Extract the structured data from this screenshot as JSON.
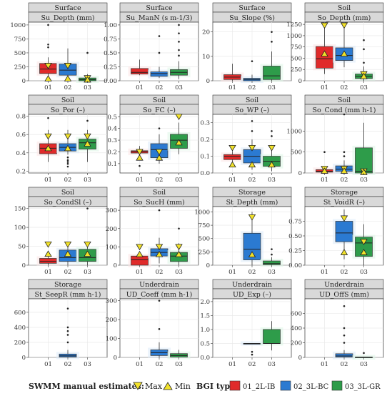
{
  "chart_data": {
    "type": "boxplot",
    "x_categories": [
      "01",
      "02",
      "03"
    ],
    "colors": {
      "series": [
        "#e02a2a",
        "#2b7ad1",
        "#2e9c4a"
      ],
      "marker_fill": "#f2e22a",
      "strip_bg": "#d9d9d9",
      "panel_border": "#333333",
      "grid": "#e6e6e6"
    },
    "legend": {
      "manual_label": "SWMM manual estimates:",
      "max_label": "Max",
      "min_label": "Min",
      "bgi_label": "BGI type:",
      "series_names": [
        "01_2L-IB",
        "02_3L-BC",
        "03_3L-GR"
      ]
    },
    "panels": [
      {
        "group": "Surface",
        "title": "Su_Depth (mm)",
        "ylim": [
          0,
          1050
        ],
        "yticks": [
          "0",
          "250",
          "500",
          "750",
          "1000"
        ],
        "boxes": [
          {
            "x": 0,
            "q1": 130,
            "med": 210,
            "q3": 310,
            "wlo": 60,
            "whi": 420,
            "out": [
              600,
              650,
              1000
            ]
          },
          {
            "x": 1,
            "q1": 100,
            "med": 190,
            "q3": 300,
            "wlo": 40,
            "whi": 580,
            "out": []
          },
          {
            "x": 2,
            "q1": 0,
            "med": 20,
            "q3": 50,
            "wlo": 0,
            "whi": 120,
            "out": [
              500
            ]
          }
        ],
        "max": [
          {
            "x": 0,
            "y": 270
          },
          {
            "x": 1,
            "y": 270
          },
          {
            "x": 2,
            "y": 50
          }
        ],
        "min": [
          {
            "x": 0,
            "y": 40
          },
          {
            "x": 1,
            "y": 40
          },
          {
            "x": 2,
            "y": 20
          }
        ]
      },
      {
        "group": "Surface",
        "title": "Su_ManN (s m-1/3)",
        "ylim": [
          0,
          1.05
        ],
        "yticks": [
          "0.00",
          "0.25",
          "0.50",
          "0.75",
          "1.00"
        ],
        "boxes": [
          {
            "x": 0,
            "q1": 0.12,
            "med": 0.15,
            "q3": 0.22,
            "wlo": 0.1,
            "whi": 0.38,
            "out": []
          },
          {
            "x": 1,
            "q1": 0.08,
            "med": 0.13,
            "q3": 0.16,
            "wlo": 0.05,
            "whi": 0.25,
            "out": [
              0.5,
              0.8
            ]
          },
          {
            "x": 2,
            "q1": 0.1,
            "med": 0.15,
            "q3": 0.2,
            "wlo": 0.03,
            "whi": 0.35,
            "out": [
              0.45,
              0.55,
              0.7,
              0.85,
              1.0
            ]
          }
        ],
        "max": [],
        "min": []
      },
      {
        "group": "Surface",
        "title": "Su_Slope (%)",
        "ylim": [
          0,
          24
        ],
        "yticks": [
          "0",
          "10",
          "20"
        ],
        "boxes": [
          {
            "x": 0,
            "q1": 0.5,
            "med": 1.5,
            "q3": 2.5,
            "wlo": 0,
            "whi": 7,
            "out": []
          },
          {
            "x": 1,
            "q1": 0,
            "med": 0.5,
            "q3": 1,
            "wlo": 0,
            "whi": 2.5,
            "out": [
              8
            ]
          },
          {
            "x": 2,
            "q1": 0.5,
            "med": 2,
            "q3": 6,
            "wlo": 0,
            "whi": 12,
            "out": [
              16,
              20
            ]
          }
        ],
        "max": [],
        "min": []
      },
      {
        "group": "Soil",
        "title": "So_Depth (mm)",
        "ylim": [
          0,
          1300
        ],
        "yticks": [
          "0",
          "250",
          "500",
          "750",
          "1000",
          "1250"
        ],
        "boxes": [
          {
            "x": 0,
            "q1": 280,
            "med": 490,
            "q3": 760,
            "wlo": 150,
            "whi": 1200,
            "out": []
          },
          {
            "x": 1,
            "q1": 450,
            "med": 560,
            "q3": 730,
            "wlo": 300,
            "whi": 1230,
            "out": []
          },
          {
            "x": 2,
            "q1": 50,
            "med": 100,
            "q3": 150,
            "wlo": 0,
            "whi": 320,
            "out": [
              400,
              700,
              900
            ]
          }
        ],
        "max": [
          {
            "x": 0,
            "y": 1230
          },
          {
            "x": 1,
            "y": 1230
          },
          {
            "x": 2,
            "y": 150
          }
        ],
        "min": [
          {
            "x": 0,
            "y": 600
          },
          {
            "x": 1,
            "y": 600
          },
          {
            "x": 2,
            "y": 100
          }
        ]
      },
      {
        "group": "Soil",
        "title": "So_Por (–)",
        "ylim": [
          0.18,
          0.82
        ],
        "yticks": [
          "0.2",
          "0.4",
          "0.6",
          "0.8"
        ],
        "boxes": [
          {
            "x": 0,
            "q1": 0.39,
            "med": 0.45,
            "q3": 0.5,
            "wlo": 0.3,
            "whi": 0.65,
            "out": [
              0.78
            ]
          },
          {
            "x": 1,
            "q1": 0.42,
            "med": 0.46,
            "q3": 0.5,
            "wlo": 0.38,
            "whi": 0.65,
            "out": [
              0.35,
              0.32,
              0.3,
              0.28,
              0.25
            ]
          },
          {
            "x": 2,
            "q1": 0.44,
            "med": 0.51,
            "q3": 0.55,
            "wlo": 0.3,
            "whi": 0.65,
            "out": [
              0.75
            ]
          }
        ],
        "max": [
          {
            "x": 0,
            "y": 0.58
          },
          {
            "x": 1,
            "y": 0.58
          },
          {
            "x": 2,
            "y": 0.58
          }
        ],
        "min": [
          {
            "x": 0,
            "y": 0.45
          },
          {
            "x": 1,
            "y": 0.45
          },
          {
            "x": 2,
            "y": 0.5
          }
        ]
      },
      {
        "group": "Soil",
        "title": "So_FC (–)",
        "ylim": [
          0.02,
          0.52
        ],
        "yticks": [
          "0.1",
          "0.2",
          "0.3",
          "0.4",
          "0.5"
        ],
        "boxes": [
          {
            "x": 0,
            "q1": 0.19,
            "med": 0.2,
            "q3": 0.21,
            "wlo": 0.16,
            "whi": 0.25,
            "out": [
              0.08
            ]
          },
          {
            "x": 1,
            "q1": 0.15,
            "med": 0.22,
            "q3": 0.27,
            "wlo": 0.1,
            "whi": 0.35,
            "out": [
              0.4
            ]
          },
          {
            "x": 2,
            "q1": 0.23,
            "med": 0.3,
            "q3": 0.35,
            "wlo": 0.18,
            "whi": 0.45,
            "out": []
          }
        ],
        "max": [
          {
            "x": 0,
            "y": 0.2
          },
          {
            "x": 1,
            "y": 0.2
          },
          {
            "x": 2,
            "y": 0.5
          }
        ],
        "min": [
          {
            "x": 0,
            "y": 0.15
          },
          {
            "x": 1,
            "y": 0.15
          },
          {
            "x": 2,
            "y": 0.28
          }
        ]
      },
      {
        "group": "Soil",
        "title": "So_WP (–)",
        "ylim": [
          0,
          0.35
        ],
        "yticks": [
          "0.0",
          "0.1",
          "0.2",
          "0.3"
        ],
        "boxes": [
          {
            "x": 0,
            "q1": 0.08,
            "med": 0.1,
            "q3": 0.11,
            "wlo": 0.06,
            "whi": 0.13,
            "out": []
          },
          {
            "x": 1,
            "q1": 0.06,
            "med": 0.1,
            "q3": 0.14,
            "wlo": 0.02,
            "whi": 0.2,
            "out": [
              0.25,
              0.31
            ]
          },
          {
            "x": 2,
            "q1": 0.04,
            "med": 0.07,
            "q3": 0.1,
            "wlo": 0.01,
            "whi": 0.16,
            "out": [
              0.22,
              0.25
            ]
          }
        ],
        "max": [
          {
            "x": 0,
            "y": 0.15
          },
          {
            "x": 1,
            "y": 0.15
          },
          {
            "x": 2,
            "y": 0.15
          }
        ],
        "min": [
          {
            "x": 0,
            "y": 0.05
          },
          {
            "x": 1,
            "y": 0.05
          },
          {
            "x": 2,
            "y": 0.05
          }
        ]
      },
      {
        "group": "Soil",
        "title": "So_Cond (mm h-1)",
        "ylim": [
          0,
          1400
        ],
        "yticks": [
          "0",
          "500",
          "1000"
        ],
        "boxes": [
          {
            "x": 0,
            "q1": 20,
            "med": 40,
            "q3": 80,
            "wlo": 0,
            "whi": 150,
            "out": [
              500
            ]
          },
          {
            "x": 1,
            "q1": 40,
            "med": 90,
            "q3": 170,
            "wlo": 0,
            "whi": 300,
            "out": [
              400,
              500,
              1400
            ]
          },
          {
            "x": 2,
            "q1": 0,
            "med": 40,
            "q3": 600,
            "wlo": 0,
            "whi": 1200,
            "out": []
          }
        ],
        "max": [
          {
            "x": 0,
            "y": 100
          },
          {
            "x": 1,
            "y": 100
          },
          {
            "x": 2,
            "y": 40
          }
        ],
        "min": [
          {
            "x": 0,
            "y": 50
          },
          {
            "x": 1,
            "y": 50
          },
          {
            "x": 2,
            "y": 20
          }
        ]
      },
      {
        "group": "Soil",
        "title": "So_CondSl (–)",
        "ylim": [
          0,
          155
        ],
        "yticks": [
          "0",
          "50",
          "100",
          "150"
        ],
        "boxes": [
          {
            "x": 0,
            "q1": 5,
            "med": 10,
            "q3": 18,
            "wlo": 0,
            "whi": 30,
            "out": []
          },
          {
            "x": 1,
            "q1": 10,
            "med": 20,
            "q3": 40,
            "wlo": 0,
            "whi": 60,
            "out": []
          },
          {
            "x": 2,
            "q1": 10,
            "med": 20,
            "q3": 42,
            "wlo": 0,
            "whi": 60,
            "out": [
              150
            ]
          }
        ],
        "max": [
          {
            "x": 0,
            "y": 55
          },
          {
            "x": 1,
            "y": 55
          },
          {
            "x": 2,
            "y": 55
          }
        ],
        "min": [
          {
            "x": 0,
            "y": 30
          },
          {
            "x": 1,
            "y": 30
          },
          {
            "x": 2,
            "y": 30
          }
        ]
      },
      {
        "group": "Soil",
        "title": "So_SucH (mm)",
        "ylim": [
          0,
          320
        ],
        "yticks": [
          "0",
          "100",
          "200",
          "300"
        ],
        "boxes": [
          {
            "x": 0,
            "q1": 0,
            "med": 30,
            "q3": 50,
            "wlo": 0,
            "whi": 60,
            "out": []
          },
          {
            "x": 1,
            "q1": 50,
            "med": 70,
            "q3": 90,
            "wlo": 10,
            "whi": 150,
            "out": [
              300
            ]
          },
          {
            "x": 2,
            "q1": 20,
            "med": 50,
            "q3": 70,
            "wlo": 0,
            "whi": 120,
            "out": [
              200
            ]
          }
        ],
        "max": [
          {
            "x": 0,
            "y": 100
          },
          {
            "x": 1,
            "y": 100
          },
          {
            "x": 2,
            "y": 100
          }
        ],
        "min": [
          {
            "x": 0,
            "y": 60
          },
          {
            "x": 1,
            "y": 60
          },
          {
            "x": 2,
            "y": 60
          }
        ]
      },
      {
        "group": "Storage",
        "title": "St_Depth (mm)",
        "ylim": [
          0,
          1100
        ],
        "yticks": [
          "0",
          "250",
          "500",
          "750",
          "1000"
        ],
        "boxes": [
          {
            "x": 1,
            "q1": 100,
            "med": 300,
            "q3": 600,
            "wlo": 0,
            "whi": 1000,
            "out": []
          },
          {
            "x": 2,
            "q1": 10,
            "med": 30,
            "q3": 80,
            "wlo": 0,
            "whi": 150,
            "out": [
              200,
              300
            ]
          }
        ],
        "max": [
          {
            "x": 1,
            "y": 900
          }
        ],
        "min": [
          {
            "x": 1,
            "y": 200
          }
        ]
      },
      {
        "group": "Storage",
        "title": "St_VoidR (–)",
        "ylim": [
          0,
          1.0
        ],
        "yticks": [
          "0.00",
          "0.25",
          "0.50",
          "0.75"
        ],
        "boxes": [
          {
            "x": 1,
            "q1": 0.4,
            "med": 0.55,
            "q3": 0.75,
            "wlo": 0.1,
            "whi": 0.95,
            "out": []
          },
          {
            "x": 2,
            "q1": 0.15,
            "med": 0.38,
            "q3": 0.48,
            "wlo": 0,
            "whi": 0.7,
            "out": []
          }
        ],
        "max": [
          {
            "x": 1,
            "y": 0.8
          },
          {
            "x": 2,
            "y": 0.4
          }
        ],
        "min": [
          {
            "x": 1,
            "y": 0.22
          },
          {
            "x": 2,
            "y": 0.22
          }
        ]
      },
      {
        "group": "Storage",
        "title": "St_SeepR (mm h-1)",
        "ylim": [
          0,
          780
        ],
        "yticks": [
          "0",
          "200",
          "400",
          "600"
        ],
        "boxes": [
          {
            "x": 1,
            "q1": 5,
            "med": 20,
            "q3": 45,
            "wlo": 0,
            "whi": 100,
            "out": [
              200,
              300,
              350,
              400,
              650
            ]
          }
        ],
        "max": [],
        "min": []
      },
      {
        "group": "Underdrain",
        "title": "UD_Coeff (mm h-1)",
        "ylim": [
          0,
          310
        ],
        "yticks": [
          "0",
          "100",
          "200",
          "300"
        ],
        "boxes": [
          {
            "x": 1,
            "q1": 10,
            "med": 25,
            "q3": 40,
            "wlo": 0,
            "whi": 80,
            "out": [
              150,
              300
            ]
          },
          {
            "x": 2,
            "q1": 2,
            "med": 10,
            "q3": 20,
            "wlo": 0,
            "whi": 40,
            "out": []
          }
        ],
        "max": [],
        "min": []
      },
      {
        "group": "Underdrain",
        "title": "UD_Exp (–)",
        "ylim": [
          0,
          2.1
        ],
        "yticks": [
          "0.0",
          "0.5",
          "1.0",
          "1.5",
          "2.0"
        ],
        "boxes": [
          {
            "x": 1,
            "q1": 0.5,
            "med": 0.5,
            "q3": 0.5,
            "wlo": 0.5,
            "whi": 0.5,
            "out": [
              0.1,
              0.2
            ]
          },
          {
            "x": 2,
            "q1": 0.5,
            "med": 0.5,
            "q3": 1.0,
            "wlo": 0.25,
            "whi": 1.3,
            "out": []
          }
        ],
        "max": [],
        "min": []
      },
      {
        "group": "Underdrain",
        "title": "UD_OffS (mm)",
        "ylim": [
          0,
          800
        ],
        "yticks": [
          "0",
          "200",
          "400",
          "600"
        ],
        "boxes": [
          {
            "x": 1,
            "q1": 5,
            "med": 20,
            "q3": 50,
            "wlo": 0,
            "whi": 100,
            "out": [
              200,
              300,
              400,
              700
            ]
          },
          {
            "x": 2,
            "q1": 0,
            "med": 2,
            "q3": 5,
            "wlo": 0,
            "whi": 10,
            "out": [
              60
            ]
          }
        ],
        "max": [],
        "min": []
      }
    ]
  }
}
